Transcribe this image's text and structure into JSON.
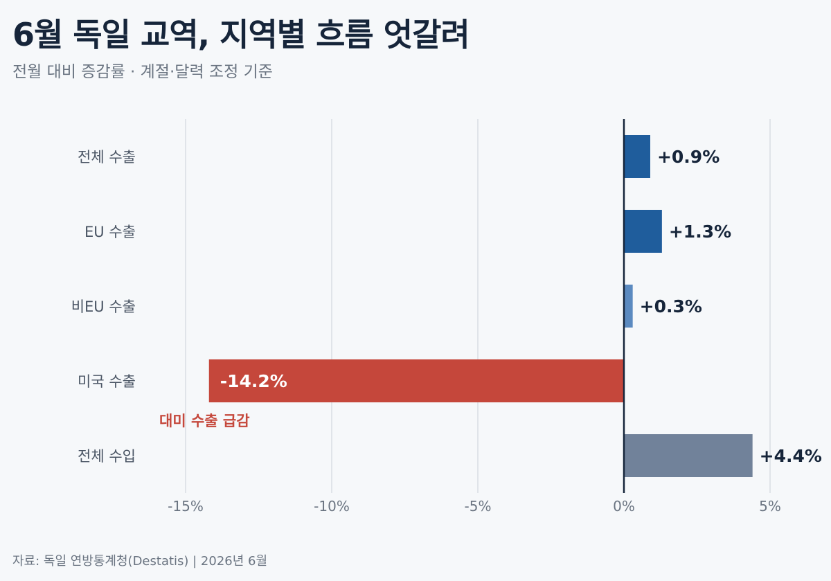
{
  "title": "6월 독일 교역, 지역별 흐름 엇갈려",
  "subtitle": "전월 대비 증감률 · 계절·달력 조정 기준",
  "source": "자료: 독일 연방통계청(Destatis) | 2026년 6월",
  "chart_data": {
    "type": "bar",
    "orientation": "horizontal",
    "categories": [
      "전체 수출",
      "EU 수출",
      "비EU 수출",
      "미국 수출",
      "전체 수입"
    ],
    "values": [
      0.9,
      1.3,
      0.3,
      -14.2,
      4.4
    ],
    "value_labels": [
      "+0.9%",
      "+1.3%",
      "+0.3%",
      "-14.2%",
      "+4.4%"
    ],
    "bar_colors": [
      "#1f5d9c",
      "#1f5d9c",
      "#5b8ac0",
      "#c5473b",
      "#71829a"
    ],
    "xlim": [
      -15,
      5
    ],
    "xticks": [
      -15,
      -10,
      -5,
      0,
      5
    ],
    "xtick_labels": [
      "-15%",
      "-10%",
      "-5%",
      "0%",
      "5%"
    ],
    "annotation": {
      "text": "대미 수출 급감",
      "category": "미국 수출",
      "color": "#c5473b"
    },
    "grid": true
  }
}
